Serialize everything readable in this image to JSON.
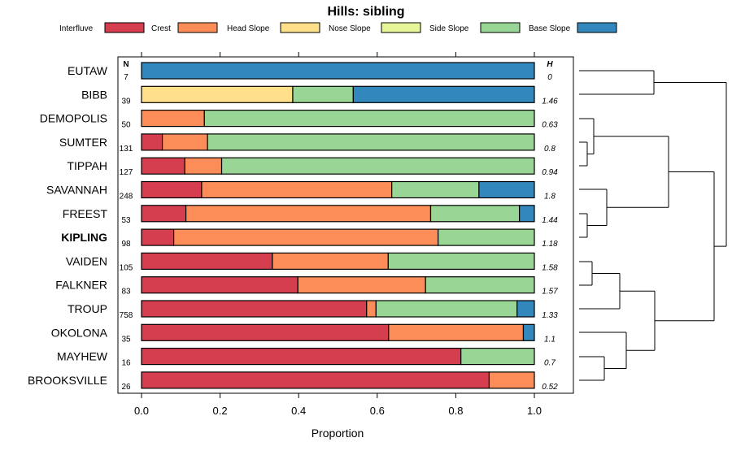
{
  "chart_data": {
    "type": "bar",
    "stacked": true,
    "orientation": "horizontal",
    "title": "Hills: sibling",
    "xlabel": "Proportion",
    "xlim": [
      0,
      1
    ],
    "xticks": [
      "0.0",
      "0.2",
      "0.4",
      "0.6",
      "0.8",
      "1.0"
    ],
    "n_header": "N",
    "h_header": "H",
    "legend": [
      {
        "name": "Interfluve",
        "color": "#D53E4F"
      },
      {
        "name": "Crest",
        "color": "#FC8D59"
      },
      {
        "name": "Head Slope",
        "color": "#FEE08B"
      },
      {
        "name": "Nose Slope",
        "color": "#E6F598"
      },
      {
        "name": "Side Slope",
        "color": "#99D594"
      },
      {
        "name": "Base Slope",
        "color": "#3288BD"
      }
    ],
    "rows": [
      {
        "name": "EUTAW",
        "n": "7",
        "h": "0",
        "bold": false,
        "values": [
          0,
          0,
          0,
          0,
          0,
          1.0
        ]
      },
      {
        "name": "BIBB",
        "n": "39",
        "h": "1.46",
        "bold": false,
        "values": [
          0,
          0,
          0.385,
          0,
          0.154,
          0.461
        ]
      },
      {
        "name": "DEMOPOLIS",
        "n": "50",
        "h": "0.63",
        "bold": false,
        "values": [
          0,
          0.16,
          0,
          0,
          0.84,
          0
        ]
      },
      {
        "name": "SUMTER",
        "n": "131",
        "h": "0.8",
        "bold": false,
        "values": [
          0.053,
          0.115,
          0,
          0,
          0.832,
          0
        ]
      },
      {
        "name": "TIPPAH",
        "n": "127",
        "h": "0.94",
        "bold": false,
        "values": [
          0.11,
          0.094,
          0,
          0,
          0.796,
          0
        ]
      },
      {
        "name": "SAVANNAH",
        "n": "248",
        "h": "1.8",
        "bold": false,
        "values": [
          0.153,
          0.484,
          0,
          0,
          0.222,
          0.141
        ]
      },
      {
        "name": "FREEST",
        "n": "53",
        "h": "1.44",
        "bold": false,
        "values": [
          0.113,
          0.623,
          0,
          0,
          0.226,
          0.038
        ]
      },
      {
        "name": "KIPLING",
        "n": "98",
        "h": "1.18",
        "bold": true,
        "values": [
          0.082,
          0.673,
          0,
          0,
          0.245,
          0
        ]
      },
      {
        "name": "VAIDEN",
        "n": "105",
        "h": "1.58",
        "bold": false,
        "values": [
          0.333,
          0.295,
          0,
          0,
          0.372,
          0
        ]
      },
      {
        "name": "FALKNER",
        "n": "83",
        "h": "1.57",
        "bold": false,
        "values": [
          0.398,
          0.325,
          0,
          0,
          0.277,
          0
        ]
      },
      {
        "name": "TROUP",
        "n": "758",
        "h": "1.33",
        "bold": false,
        "values": [
          0.573,
          0.024,
          0,
          0,
          0.359,
          0.044
        ]
      },
      {
        "name": "OKOLONA",
        "n": "35",
        "h": "1.1",
        "bold": false,
        "values": [
          0.629,
          0.343,
          0,
          0,
          0,
          0.028
        ]
      },
      {
        "name": "MAYHEW",
        "n": "16",
        "h": "0.7",
        "bold": false,
        "values": [
          0.813,
          0,
          0,
          0,
          0.187,
          0
        ]
      },
      {
        "name": "BROOKSVILLE",
        "n": "26",
        "h": "0.52",
        "bold": false,
        "values": [
          0.885,
          0.115,
          0,
          0,
          0,
          0
        ]
      }
    ]
  }
}
